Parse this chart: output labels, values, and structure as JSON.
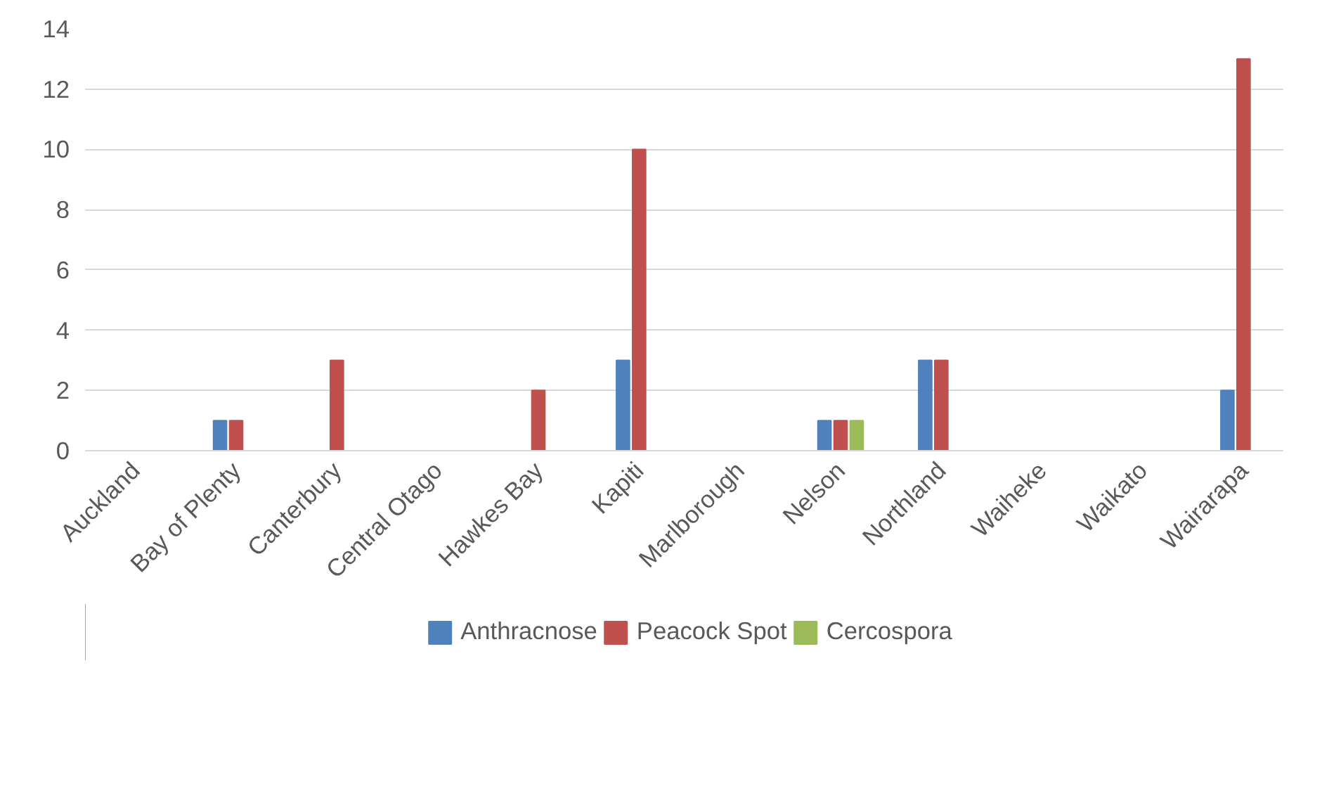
{
  "chart_data": {
    "type": "bar",
    "categories": [
      "Auckland",
      "Bay of Plenty",
      "Canterbury",
      "Central Otago",
      "Hawkes Bay",
      "Kapiti",
      "Marlborough",
      "Nelson",
      "Northland",
      "Waiheke",
      "Waikato",
      "Wairarapa"
    ],
    "series": [
      {
        "name": "Anthracnose",
        "color": "#4f81bd",
        "values": [
          0,
          1,
          0,
          0,
          0,
          3,
          0,
          1,
          3,
          0,
          0,
          2
        ]
      },
      {
        "name": "Peacock Spot",
        "color": "#c0504d",
        "values": [
          0,
          1,
          3,
          0,
          2,
          10,
          0,
          1,
          3,
          0,
          0,
          13
        ]
      },
      {
        "name": "Cercospora",
        "color": "#9bbb59",
        "values": [
          0,
          0,
          0,
          0,
          0,
          0,
          0,
          1,
          0,
          0,
          0,
          0
        ]
      }
    ],
    "ylim": [
      0,
      14
    ],
    "yticks": [
      0,
      2,
      4,
      6,
      8,
      10,
      12,
      14
    ],
    "grid": "y",
    "legend": "bottom"
  }
}
